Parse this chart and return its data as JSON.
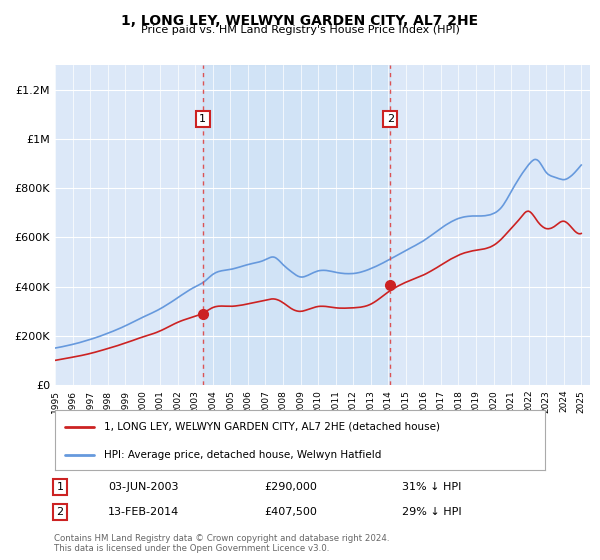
{
  "title": "1, LONG LEY, WELWYN GARDEN CITY, AL7 2HE",
  "subtitle": "Price paid vs. HM Land Registry's House Price Index (HPI)",
  "plot_background": "#dce8f8",
  "shade_color": "#cce0f0",
  "ylim": [
    0,
    1300000
  ],
  "yticks": [
    0,
    200000,
    400000,
    600000,
    800000,
    1000000,
    1200000
  ],
  "ytick_labels": [
    "£0",
    "£200K",
    "£400K",
    "£600K",
    "£800K",
    "£1M",
    "£1.2M"
  ],
  "sale1_x": 2003.42,
  "sale1_price": 290000,
  "sale2_x": 2014.12,
  "sale2_price": 407500,
  "hpi_color": "#6699dd",
  "price_color": "#cc2222",
  "dashed_color": "#dd4444",
  "legend_entry1": "1, LONG LEY, WELWYN GARDEN CITY, AL7 2HE (detached house)",
  "legend_entry2": "HPI: Average price, detached house, Welwyn Hatfield",
  "table_rows": [
    {
      "num": "1",
      "date": "03-JUN-2003",
      "price": "£290,000",
      "hpi": "31% ↓ HPI"
    },
    {
      "num": "2",
      "date": "13-FEB-2014",
      "price": "£407,500",
      "hpi": "29% ↓ HPI"
    }
  ],
  "footer": "Contains HM Land Registry data © Crown copyright and database right 2024.\nThis data is licensed under the Open Government Licence v3.0.",
  "xlim_start": 1995.0,
  "xlim_end": 2025.5
}
